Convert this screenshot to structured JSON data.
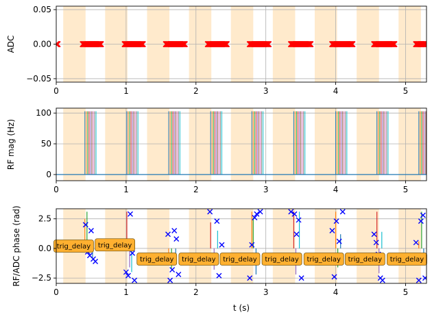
{
  "chart_data": [
    {
      "type": "scatter",
      "ylabel": "ADC",
      "xlim": [
        0,
        5.3
      ],
      "ylim": [
        -0.055,
        0.055
      ],
      "xticks": [
        "0",
        "1",
        "2",
        "3",
        "4",
        "5"
      ],
      "yticks": [
        "0.05",
        "0.00",
        "−0.05"
      ],
      "ytick_values": [
        0.05,
        0.0,
        -0.05
      ],
      "grid": true,
      "shaded_intervals": [
        [
          0.1,
          0.42
        ],
        [
          0.7,
          1.02
        ],
        [
          1.3,
          1.62
        ],
        [
          1.9,
          2.22
        ],
        [
          2.5,
          2.82
        ],
        [
          3.1,
          3.42
        ],
        [
          3.7,
          4.02
        ],
        [
          4.3,
          4.62
        ],
        [
          4.9,
          5.22
        ]
      ],
      "adc_sample_intervals": [
        [
          0.0,
          0.02
        ],
        [
          0.38,
          0.64
        ],
        [
          0.98,
          1.24
        ],
        [
          1.57,
          1.84
        ],
        [
          2.17,
          2.44
        ],
        [
          2.77,
          3.04
        ],
        [
          3.36,
          3.64
        ],
        [
          3.95,
          4.24
        ],
        [
          4.55,
          4.84
        ],
        [
          5.15,
          5.3
        ]
      ],
      "marker_color": "#ff0000"
    },
    {
      "type": "line",
      "ylabel": "RF mag (Hz)",
      "xlim": [
        0,
        5.3
      ],
      "ylim": [
        -10,
        108
      ],
      "xticks": [
        "0",
        "1",
        "2",
        "3",
        "4",
        "5"
      ],
      "yticks": [
        "100",
        "50",
        "0"
      ],
      "ytick_values": [
        100,
        50,
        0
      ],
      "grid": true,
      "shaded_intervals": [
        [
          0.1,
          0.42
        ],
        [
          0.7,
          1.02
        ],
        [
          1.3,
          1.62
        ],
        [
          1.9,
          2.22
        ],
        [
          2.5,
          2.82
        ],
        [
          3.1,
          3.42
        ],
        [
          3.7,
          4.02
        ],
        [
          4.3,
          4.62
        ],
        [
          4.9,
          5.22
        ]
      ],
      "pulse_amplitude": 103,
      "pulse_groups": [
        0.41,
        1.01,
        1.61,
        2.21,
        2.8,
        3.4,
        4.0,
        4.59,
        5.19
      ],
      "pulse_offsets": [
        0.0,
        0.02,
        0.04,
        0.06,
        0.08,
        0.1,
        0.12,
        0.14,
        0.16
      ],
      "pulse_colors": [
        "#1f77b4",
        "#ff7f0e",
        "#2ca02c",
        "#d62728",
        "#9467bd",
        "#8c564b",
        "#e377c2",
        "#7f7f7f",
        "#17becf"
      ]
    },
    {
      "type": "scatter",
      "ylabel": "RF/ADC phase (rad)",
      "xlabel": "t (s)",
      "xlim": [
        0,
        5.3
      ],
      "ylim": [
        -2.95,
        3.35
      ],
      "xticks": [
        "0",
        "1",
        "2",
        "3",
        "4",
        "5"
      ],
      "yticks": [
        "2.5",
        "0.0",
        "−2.5"
      ],
      "ytick_values": [
        2.5,
        0.0,
        -2.5
      ],
      "grid": true,
      "shaded_intervals": [
        [
          0.1,
          0.42
        ],
        [
          0.7,
          1.02
        ],
        [
          1.3,
          1.62
        ],
        [
          1.9,
          2.22
        ],
        [
          2.5,
          2.82
        ],
        [
          3.1,
          3.42
        ],
        [
          3.7,
          4.02
        ],
        [
          4.3,
          4.62
        ],
        [
          4.9,
          5.22
        ]
      ],
      "adc_phase_points": [
        [
          0.42,
          2.0
        ],
        [
          0.45,
          -0.3
        ],
        [
          0.48,
          -0.6
        ],
        [
          0.5,
          1.5
        ],
        [
          0.53,
          -0.9
        ],
        [
          0.56,
          -1.1
        ],
        [
          1.0,
          -2.0
        ],
        [
          1.03,
          -2.3
        ],
        [
          1.06,
          2.9
        ],
        [
          1.09,
          -0.4
        ],
        [
          1.12,
          -2.7
        ],
        [
          1.6,
          1.2
        ],
        [
          1.63,
          -2.7
        ],
        [
          1.66,
          -1.8
        ],
        [
          1.69,
          1.5
        ],
        [
          1.72,
          0.8
        ],
        [
          1.75,
          -2.2
        ],
        [
          2.2,
          3.1
        ],
        [
          2.25,
          -1.0
        ],
        [
          2.3,
          2.3
        ],
        [
          2.33,
          -2.3
        ],
        [
          2.37,
          0.3
        ],
        [
          2.77,
          -2.5
        ],
        [
          2.8,
          0.3
        ],
        [
          2.84,
          2.6
        ],
        [
          2.87,
          2.9
        ],
        [
          2.92,
          3.1
        ],
        [
          3.36,
          3.1
        ],
        [
          3.41,
          2.9
        ],
        [
          3.44,
          1.2
        ],
        [
          3.47,
          2.4
        ],
        [
          3.51,
          -2.5
        ],
        [
          3.95,
          1.5
        ],
        [
          3.98,
          -2.4
        ],
        [
          4.01,
          2.3
        ],
        [
          4.05,
          0.6
        ],
        [
          4.1,
          3.1
        ],
        [
          4.55,
          1.2
        ],
        [
          4.58,
          0.5
        ],
        [
          4.61,
          -0.5
        ],
        [
          4.64,
          -2.5
        ],
        [
          4.67,
          -2.7
        ],
        [
          5.15,
          0.5
        ],
        [
          5.19,
          -2.7
        ],
        [
          5.22,
          2.3
        ],
        [
          5.25,
          2.8
        ],
        [
          5.28,
          -2.5
        ]
      ],
      "rf_phase_lines": [
        [
          0.41,
          2.5
        ],
        [
          0.44,
          3.1
        ],
        [
          0.52,
          -0.8
        ],
        [
          1.01,
          3.1
        ],
        [
          1.05,
          -1.6
        ],
        [
          1.08,
          -2.0
        ],
        [
          1.61,
          -1.2
        ],
        [
          1.65,
          -1.7
        ],
        [
          1.71,
          -0.6
        ],
        [
          2.21,
          2.2
        ],
        [
          2.26,
          -1.8
        ],
        [
          2.31,
          1.5
        ],
        [
          2.8,
          3.1
        ],
        [
          2.82,
          2.6
        ],
        [
          2.86,
          -2.2
        ],
        [
          3.4,
          3.1
        ],
        [
          3.43,
          -2.2
        ],
        [
          3.48,
          3.1
        ],
        [
          4.0,
          3.1
        ],
        [
          4.03,
          -1.6
        ],
        [
          4.07,
          1.2
        ],
        [
          4.59,
          3.1
        ],
        [
          4.62,
          -2.1
        ],
        [
          4.66,
          1.4
        ],
        [
          5.19,
          0.6
        ],
        [
          5.23,
          3.1
        ],
        [
          5.26,
          -0.5
        ]
      ],
      "rf_line_colors": [
        "#ff7f0e",
        "#2ca02c",
        "#1f77b4",
        "#d62728",
        "#9467bd",
        "#17becf"
      ],
      "annotations": [
        {
          "text": "trig_delay",
          "x": 0.25,
          "y": 0.2
        },
        {
          "text": "trig_delay",
          "x": 0.84,
          "y": 0.3
        },
        {
          "text": "trig_delay",
          "x": 1.44,
          "y": -0.9
        },
        {
          "text": "trig_delay",
          "x": 2.04,
          "y": -0.9
        },
        {
          "text": "trig_delay",
          "x": 2.63,
          "y": -0.9
        },
        {
          "text": "trig_delay",
          "x": 3.23,
          "y": -0.9
        },
        {
          "text": "trig_delay",
          "x": 3.83,
          "y": -0.9
        },
        {
          "text": "trig_delay",
          "x": 4.42,
          "y": -0.9
        },
        {
          "text": "trig_delay",
          "x": 5.02,
          "y": -0.9
        }
      ],
      "annotation_color": "#ffb030",
      "marker_color": "#0000ff"
    }
  ]
}
